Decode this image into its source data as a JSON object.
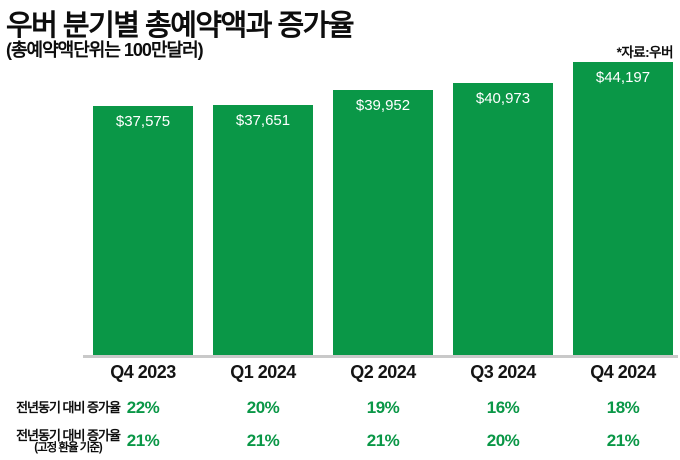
{
  "header": {
    "title": "우버 분기별 총예약액과 증가율",
    "subtitle": "(총예약액단위는 100만달러)",
    "source": "*자료:우버"
  },
  "chart_data": {
    "type": "bar",
    "title": "우버 분기별 총예약액과 증가율",
    "subtitle": "(총예약액단위는 100만달러)",
    "source": "*자료:우버",
    "unit": "100만달러",
    "categories": [
      "Q4 2023",
      "Q1 2024",
      "Q2 2024",
      "Q3 2024",
      "Q4 2024"
    ],
    "series": [
      {
        "name": "총예약액",
        "values": [
          37575,
          37651,
          39952,
          40973,
          44197
        ],
        "labels": [
          "$37,575",
          "$37,651",
          "$39,952",
          "$40,973",
          "$44,197"
        ]
      }
    ],
    "rows": [
      {
        "label": "전년동기 대비 증가율",
        "values": [
          "22%",
          "20%",
          "19%",
          "16%",
          "18%"
        ]
      },
      {
        "label": "전년동기 대비 증가율",
        "label2": "(고정 환율 기준)",
        "values": [
          "21%",
          "21%",
          "21%",
          "20%",
          "21%"
        ]
      }
    ],
    "ylim": [
      0,
      44197
    ],
    "bar_color": "#0a9747",
    "baseline_color": "#c9c9c9",
    "legend": "none",
    "grid": false
  }
}
